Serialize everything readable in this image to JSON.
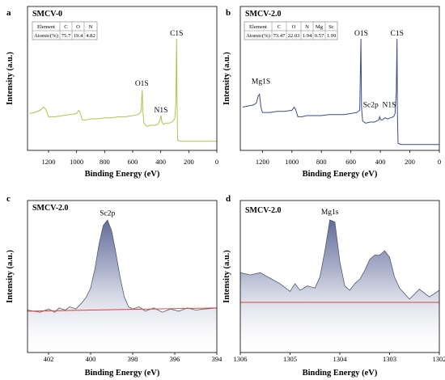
{
  "colors": {
    "a": "#a8c84a",
    "b": "#3f4a8c",
    "fill_dark": "#35407a",
    "fill_light": "#ffffff",
    "baseline": "#d9413a",
    "axis": "#000000"
  },
  "chart_data": [
    {
      "panel": "a",
      "type": "line",
      "title": "SMCV-0",
      "xlabel": "Binding Energy (eV)",
      "ylabel": "Intensity (a.u.)",
      "xlim": [
        1350,
        0
      ],
      "xticks": [
        1200,
        1000,
        800,
        600,
        400,
        200,
        0
      ],
      "reversed_x": true,
      "color_key": "a",
      "series": [
        {
          "x": [
            1335,
            1300,
            1260,
            1235,
            1220,
            1200,
            1150,
            1100,
            1050,
            1000,
            985,
            975,
            960,
            930,
            900,
            850,
            800,
            750,
            700,
            650,
            600,
            560,
            540,
            532,
            528,
            520,
            500,
            470,
            440,
            420,
            405,
            398,
            392,
            380,
            360,
            340,
            320,
            300,
            292,
            287,
            284,
            280,
            260,
            200,
            150,
            100,
            50,
            0
          ],
          "y": [
            0.3,
            0.31,
            0.33,
            0.36,
            0.34,
            0.27,
            0.27,
            0.28,
            0.29,
            0.3,
            0.33,
            0.31,
            0.24,
            0.24,
            0.25,
            0.25,
            0.26,
            0.26,
            0.27,
            0.27,
            0.28,
            0.29,
            0.32,
            0.52,
            0.33,
            0.21,
            0.18,
            0.19,
            0.19,
            0.2,
            0.24,
            0.28,
            0.22,
            0.2,
            0.21,
            0.21,
            0.22,
            0.25,
            0.4,
            1.0,
            0.45,
            0.05,
            0.04,
            0.04,
            0.04,
            0.04,
            0.04,
            0.04
          ]
        }
      ],
      "annotations": [
        {
          "text": "O1S",
          "x": 535,
          "y": 0.56
        },
        {
          "text": "C1S",
          "x": 287,
          "y": 1.03
        },
        {
          "text": "N1S",
          "x": 398,
          "y": 0.31
        }
      ],
      "table": {
        "headers": [
          "Element",
          "C",
          "O",
          "N"
        ],
        "rows": [
          [
            "Atomic(%)",
            "75.7",
            "19.4",
            "4.82"
          ]
        ]
      }
    },
    {
      "panel": "b",
      "type": "line",
      "title": "SMCV-2.0",
      "xlabel": "Binding Energy (eV)",
      "ylabel": "Intensity (a.u.)",
      "xlim": [
        1350,
        0
      ],
      "xticks": [
        1200,
        1000,
        800,
        600,
        400,
        200,
        0
      ],
      "reversed_x": true,
      "color_key": "b",
      "series": [
        {
          "x": [
            1335,
            1300,
            1260,
            1240,
            1230,
            1220,
            1210,
            1200,
            1150,
            1100,
            1050,
            1000,
            985,
            975,
            960,
            930,
            900,
            850,
            800,
            750,
            700,
            650,
            600,
            560,
            540,
            532,
            528,
            520,
            500,
            470,
            440,
            410,
            405,
            400,
            395,
            385,
            370,
            350,
            330,
            310,
            300,
            292,
            287,
            284,
            280,
            260,
            200,
            150,
            100,
            50,
            0
          ],
          "y": [
            0.36,
            0.37,
            0.38,
            0.4,
            0.46,
            0.48,
            0.36,
            0.31,
            0.31,
            0.32,
            0.32,
            0.33,
            0.36,
            0.34,
            0.27,
            0.27,
            0.28,
            0.28,
            0.28,
            0.29,
            0.29,
            0.29,
            0.3,
            0.31,
            0.33,
            1.0,
            0.36,
            0.23,
            0.21,
            0.22,
            0.22,
            0.24,
            0.27,
            0.25,
            0.24,
            0.24,
            0.26,
            0.25,
            0.26,
            0.27,
            0.3,
            0.5,
            1.0,
            0.3,
            0.02,
            0.01,
            0.01,
            0.01,
            0.01,
            0.01,
            0.01
          ]
        }
      ],
      "annotations": [
        {
          "text": "Mg1S",
          "x": 1210,
          "y": 0.58
        },
        {
          "text": "O1S",
          "x": 530,
          "y": 1.03
        },
        {
          "text": "C1S",
          "x": 287,
          "y": 1.03
        },
        {
          "text": "Sc2p",
          "x": 402,
          "y": 0.36
        },
        {
          "text": "N1S",
          "x": 398,
          "y": 0.36
        }
      ],
      "table": {
        "headers": [
          "Element",
          "C",
          "O",
          "N",
          "Mg",
          "Sc"
        ],
        "rows": [
          [
            "Atomic(%)",
            "73.47",
            "22.03",
            "1.94",
            "0.57",
            "1.99"
          ]
        ]
      }
    },
    {
      "panel": "c",
      "type": "area",
      "title": "SMCV-2.0",
      "xlabel": "Binding Energy (eV)",
      "ylabel": "Intensity (a.u.)",
      "xlim": [
        403,
        394
      ],
      "xticks": [
        402,
        400,
        398,
        396,
        394
      ],
      "reversed_x": true,
      "baseline": {
        "x": [
          403,
          394
        ],
        "y": [
          0.17,
          0.2
        ]
      },
      "series": [
        {
          "x": [
            403.0,
            402.7,
            402.4,
            402.0,
            401.7,
            401.5,
            401.2,
            401.0,
            400.7,
            400.4,
            400.2,
            400.0,
            399.8,
            399.6,
            399.4,
            399.2,
            399.0,
            398.8,
            398.6,
            398.4,
            398.2,
            398.0,
            397.7,
            397.4,
            397.0,
            396.6,
            396.2,
            395.8,
            395.4,
            395.0,
            394.6,
            394.0
          ],
          "y": [
            0.18,
            0.17,
            0.16,
            0.19,
            0.16,
            0.2,
            0.18,
            0.21,
            0.19,
            0.25,
            0.3,
            0.38,
            0.55,
            0.78,
            0.95,
            1.0,
            0.9,
            0.7,
            0.48,
            0.3,
            0.21,
            0.19,
            0.21,
            0.17,
            0.2,
            0.16,
            0.19,
            0.17,
            0.2,
            0.18,
            0.19,
            0.2
          ]
        }
      ],
      "annotations": [
        {
          "text": "Sc2p",
          "x": 399.2,
          "y": 1.04
        }
      ]
    },
    {
      "panel": "d",
      "type": "area",
      "title": "SMCV-2.0",
      "xlabel": "Binding Energy (eV)",
      "ylabel": "Intensity (a.u.)",
      "xlim": [
        1306,
        1302
      ],
      "xticks": [
        1306,
        1305,
        1304,
        1303,
        1302
      ],
      "reversed_x": true,
      "baseline": {
        "x": [
          1306,
          1302
        ],
        "y": [
          0.25,
          0.25
        ]
      },
      "series": [
        {
          "x": [
            1306.0,
            1305.8,
            1305.6,
            1305.4,
            1305.2,
            1305.0,
            1304.9,
            1304.8,
            1304.65,
            1304.5,
            1304.4,
            1304.3,
            1304.2,
            1304.1,
            1304.0,
            1303.9,
            1303.8,
            1303.7,
            1303.6,
            1303.5,
            1303.4,
            1303.3,
            1303.2,
            1303.1,
            1303.0,
            1302.9,
            1302.8,
            1302.6,
            1302.4,
            1302.2,
            1302.0
          ],
          "y": [
            0.52,
            0.5,
            0.52,
            0.47,
            0.42,
            0.35,
            0.42,
            0.36,
            0.4,
            0.38,
            0.48,
            0.72,
            1.0,
            0.98,
            0.62,
            0.4,
            0.36,
            0.42,
            0.46,
            0.54,
            0.64,
            0.68,
            0.68,
            0.72,
            0.66,
            0.48,
            0.38,
            0.28,
            0.37,
            0.3,
            0.36
          ]
        }
      ],
      "annotations": [
        {
          "text": "Mg1s",
          "x": 1304.2,
          "y": 1.05
        }
      ]
    }
  ]
}
